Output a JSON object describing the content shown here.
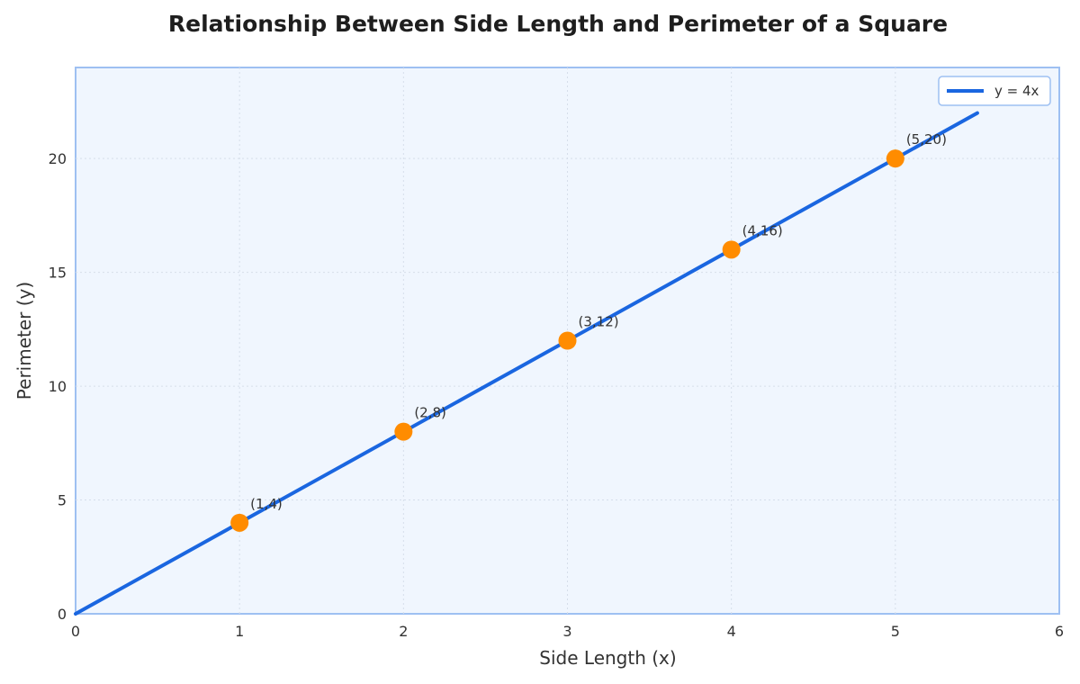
{
  "chart_data": {
    "type": "line",
    "title": "Relationship Between Side Length and Perimeter of a Square",
    "xlabel": "Side Length (x)",
    "ylabel": "Perimeter (y)",
    "xlim": [
      0,
      6
    ],
    "ylim": [
      0,
      24
    ],
    "xticks": [
      0,
      1,
      2,
      3,
      4,
      5,
      6
    ],
    "yticks": [
      0,
      5,
      10,
      15,
      20
    ],
    "grid": true,
    "legend_position": "top-right",
    "series": [
      {
        "name": "y = 4x",
        "kind": "line",
        "x": [
          0,
          5.5
        ],
        "y": [
          0,
          22
        ],
        "color": "#1a66e0"
      }
    ],
    "points": [
      {
        "x": 1,
        "y": 4,
        "label": "(1,4)"
      },
      {
        "x": 2,
        "y": 8,
        "label": "(2,8)"
      },
      {
        "x": 3,
        "y": 12,
        "label": "(3,12)"
      },
      {
        "x": 4,
        "y": 16,
        "label": "(4,16)"
      },
      {
        "x": 5,
        "y": 20,
        "label": "(5,20)"
      }
    ],
    "colors": {
      "line": "#1a66e0",
      "marker": "#ff8c00",
      "plot_background": "#f0f6fe",
      "plot_border": "#9ec0f2",
      "grid": "#d6deea"
    }
  }
}
